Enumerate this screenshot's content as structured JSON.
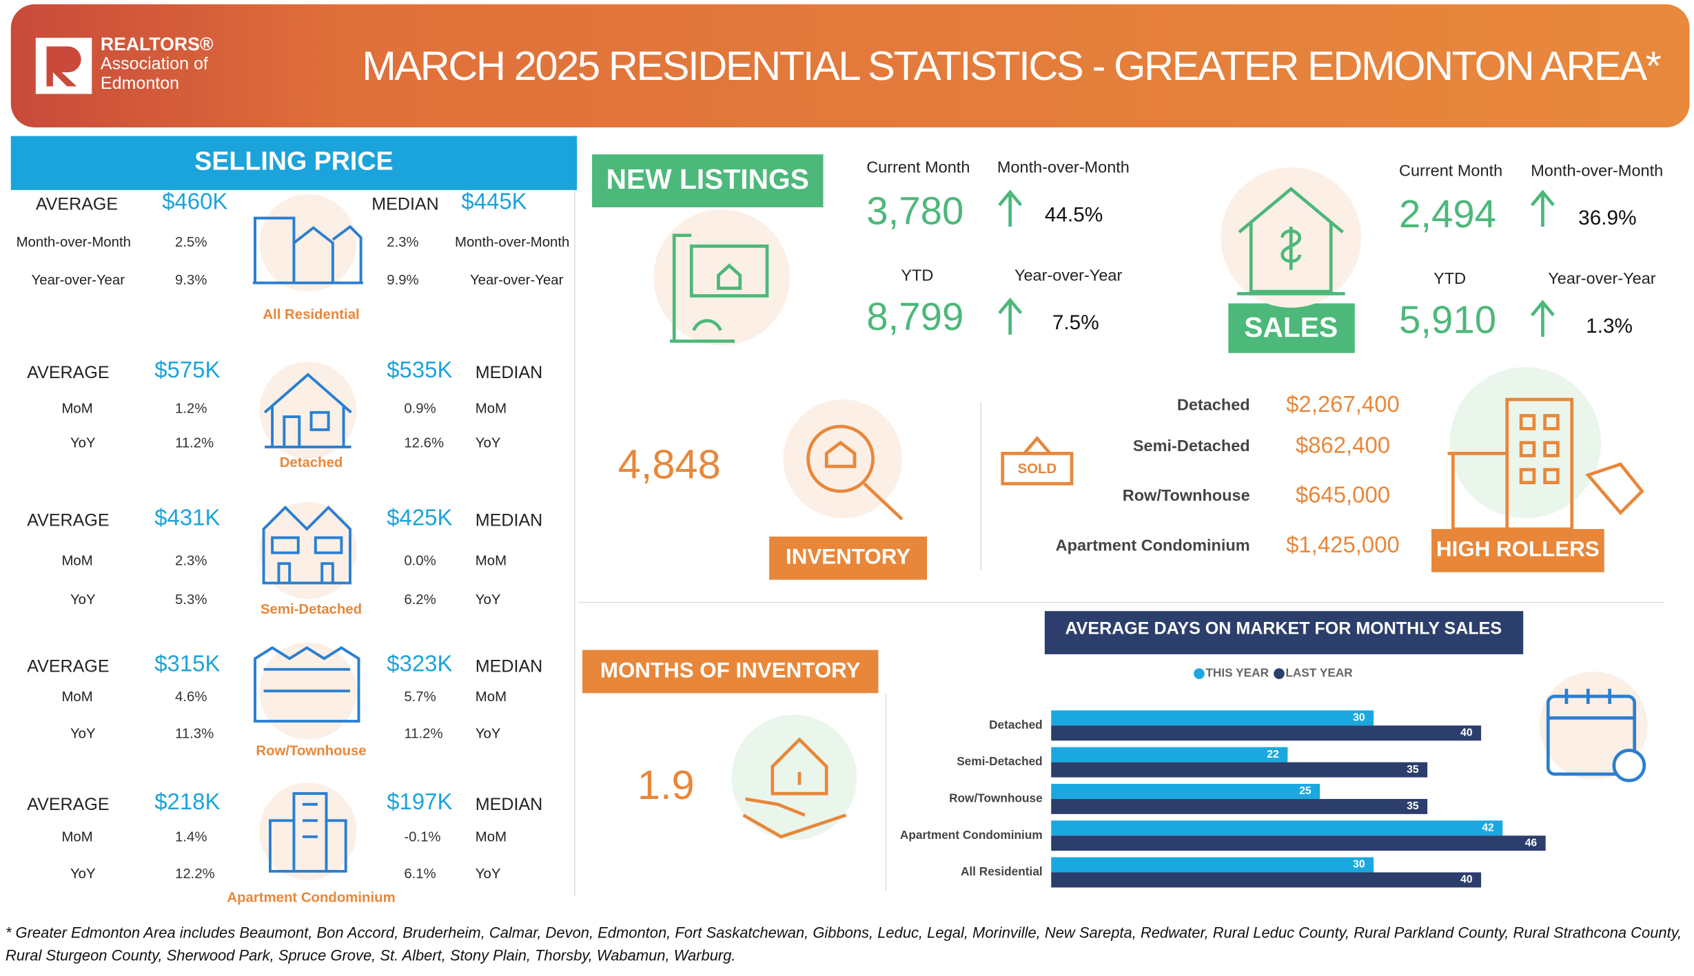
{
  "header": {
    "brand": [
      "REALTORS®",
      "Association of",
      "Edmonton"
    ],
    "title": "MARCH 2025 RESIDENTIAL STATISTICS - GREATER EDMONTON AREA*"
  },
  "selling_price": {
    "title": "SELLING PRICE",
    "groups": [
      {
        "name": "All Residential",
        "average_label": "AVERAGE",
        "average": "$460K",
        "median_label": "MEDIAN",
        "median": "$445K",
        "rows": [
          {
            "label": "Month-over-Month",
            "average": "2.5%",
            "median": "2.3%"
          },
          {
            "label": "Year-over-Year",
            "average": "9.3%",
            "median": "9.9%"
          }
        ]
      },
      {
        "name": "Detached",
        "average_label": "AVERAGE",
        "average": "$575K",
        "median_label": "MEDIAN",
        "median": "$535K",
        "rows": [
          {
            "label": "MoM",
            "average": "1.2%",
            "median": "0.9%"
          },
          {
            "label": "YoY",
            "average": "11.2%",
            "median": "12.6%"
          }
        ]
      },
      {
        "name": "Semi-Detached",
        "average_label": "AVERAGE",
        "average": "$431K",
        "median_label": "MEDIAN",
        "median": "$425K",
        "rows": [
          {
            "label": "MoM",
            "average": "2.3%",
            "median": "0.0%"
          },
          {
            "label": "YoY",
            "average": "5.3%",
            "median": "6.2%"
          }
        ]
      },
      {
        "name": "Row/Townhouse",
        "average_label": "AVERAGE",
        "average": "$315K",
        "median_label": "MEDIAN",
        "median": "$323K",
        "rows": [
          {
            "label": "MoM",
            "average": "4.6%",
            "median": "5.7%"
          },
          {
            "label": "YoY",
            "average": "11.3%",
            "median": "11.2%"
          }
        ]
      },
      {
        "name": "Apartment Condominium",
        "average_label": "AVERAGE",
        "average": "$218K",
        "median_label": "MEDIAN",
        "median": "$197K",
        "rows": [
          {
            "label": "MoM",
            "average": "1.4%",
            "median": "-0.1%"
          },
          {
            "label": "YoY",
            "average": "12.2%",
            "median": "6.1%"
          }
        ]
      }
    ]
  },
  "new_listings": {
    "title": "NEW  LISTINGS",
    "current_label": "Current Month",
    "current": "3,780",
    "mom_label": "Month-over-Month",
    "mom": "44.5%",
    "ytd_label": "YTD",
    "ytd": "8,799",
    "yoy_label": "Year-over-Year",
    "yoy": "7.5%"
  },
  "sales": {
    "title": "SALES",
    "current_label": "Current Month",
    "current": "2,494",
    "mom_label": "Month-over-Month",
    "mom": "36.9%",
    "ytd_label": "YTD",
    "ytd": "5,910",
    "yoy_label": "Year-over-Year",
    "yoy": "1.3%"
  },
  "inventory": {
    "title": "INVENTORY",
    "value": "4,848"
  },
  "high_rollers": {
    "title": "HIGH ROLLERS",
    "sign": "SOLD",
    "items": [
      {
        "label": "Detached",
        "value": "$2,267,400"
      },
      {
        "label": "Semi-Detached",
        "value": "$862,400"
      },
      {
        "label": "Row/Townhouse",
        "value": "$645,000"
      },
      {
        "label": "Apartment Condominium",
        "value": "$1,425,000"
      }
    ]
  },
  "months_of_inventory": {
    "title": "MONTHS OF INVENTORY",
    "value": "1.9"
  },
  "days_on_market": {
    "title": "AVERAGE DAYS ON MARKET FOR MONTHLY SALES",
    "categories": [
      "Detached",
      "Semi-Detached",
      "Row/Townhouse",
      "Apartment Condominium",
      "All Residential"
    ],
    "series": [
      {
        "name": "THIS YEAR",
        "color": "#1ba8e0",
        "values": [
          30,
          22,
          25,
          42,
          30
        ]
      },
      {
        "name": "LAST YEAR",
        "color": "#2c3e6b",
        "values": [
          40,
          35,
          35,
          46,
          40
        ]
      }
    ]
  },
  "footnote": [
    "* Greater Edmonton Area includes Beaumont, Bon Accord, Bruderheim, Calmar, Devon, Edmonton, Fort Saskatchewan, Gibbons, Leduc, Legal, Morinville, New Sarepta, Redwater, Rural Leduc County, Rural Parkland County, Rural Strathcona County,",
    "Rural Sturgeon County, Sherwood Park, Spruce Grove, St. Albert, Stony Plain, Thorsby, Wabamun, Warburg."
  ]
}
